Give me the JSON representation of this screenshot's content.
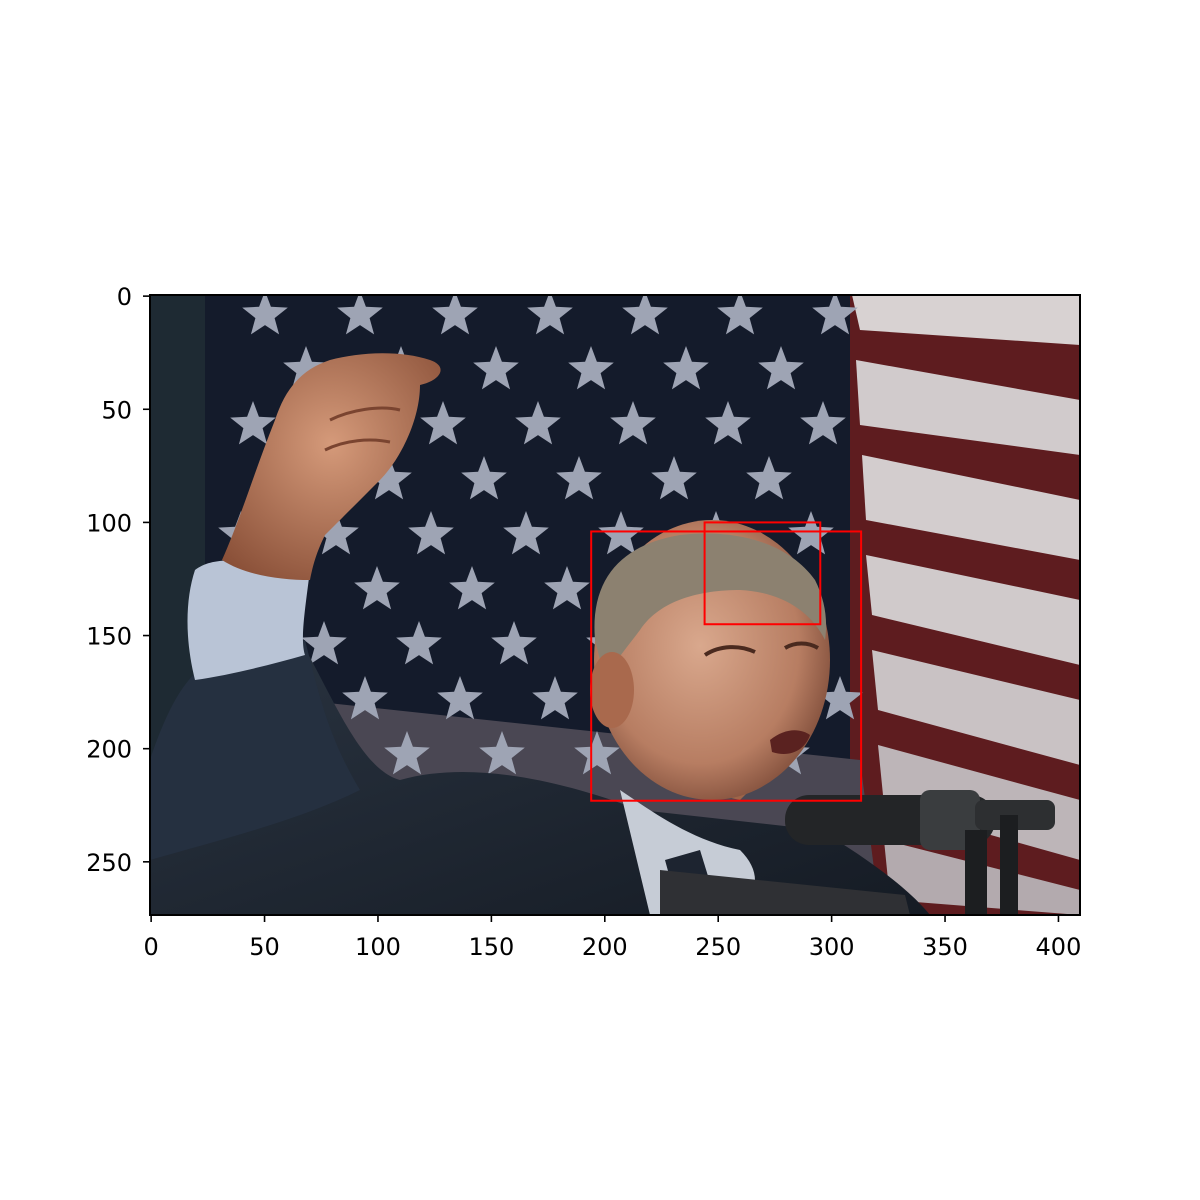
{
  "chart_data": {
    "type": "image",
    "title": "",
    "xlabel": "",
    "ylabel": "",
    "xlim": [
      0,
      409
    ],
    "ylim": [
      273,
      0
    ],
    "y_axis_inverted": true,
    "x_ticks": [
      0,
      50,
      100,
      150,
      200,
      250,
      300,
      350,
      400
    ],
    "y_ticks": [
      0,
      50,
      100,
      150,
      200,
      250
    ],
    "x_tick_labels": [
      "0",
      "50",
      "100",
      "150",
      "200",
      "250",
      "300",
      "350",
      "400"
    ],
    "y_tick_labels": [
      "0",
      "50",
      "100",
      "150",
      "200",
      "250"
    ],
    "image_content": "photo-of-man-speaking-at-microphone-in-front-of-flag",
    "boxes": [
      {
        "label": "face-box",
        "x0": 194,
        "y0": 104,
        "x1": 313,
        "y1": 223,
        "color": "#ff0000"
      },
      {
        "label": "forehead-box",
        "x0": 244,
        "y0": 100,
        "x1": 295,
        "y1": 145,
        "color": "#ff0000"
      }
    ],
    "grid": false,
    "legend": "none"
  }
}
